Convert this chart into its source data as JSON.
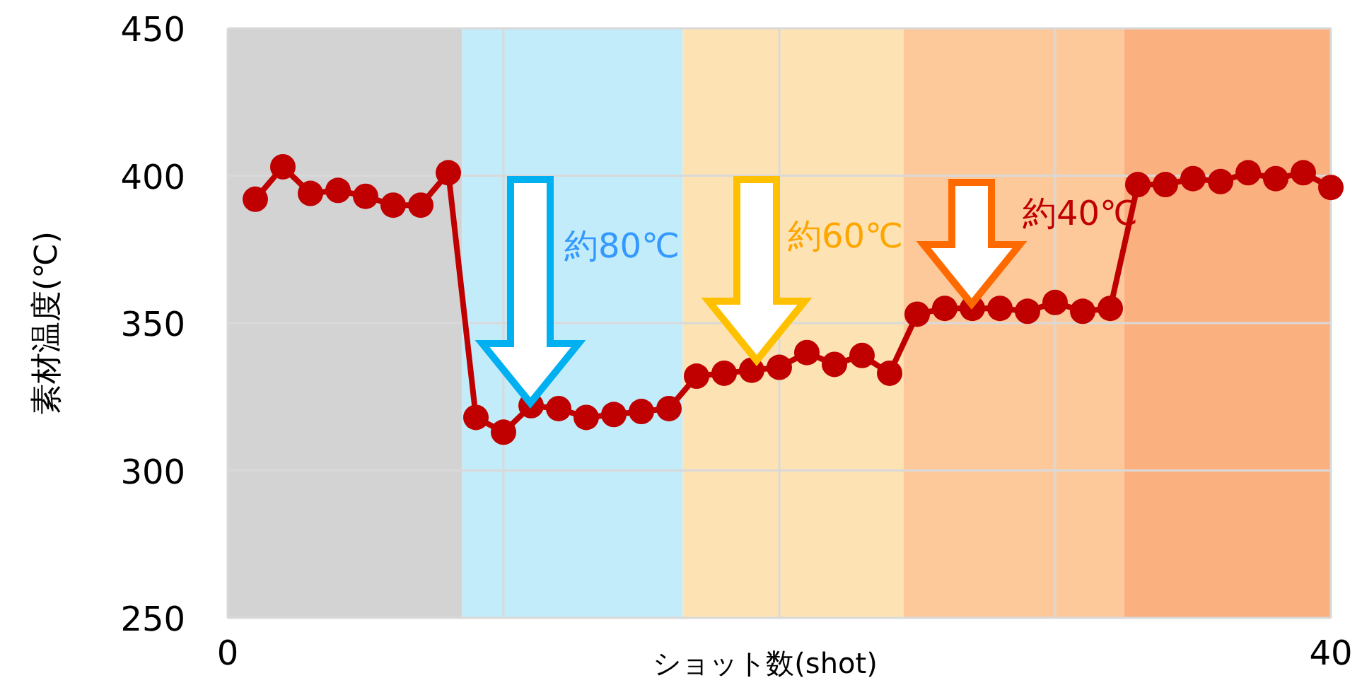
{
  "chart_data": {
    "type": "line",
    "xlabel": "ショット数(shot)",
    "ylabel": "素材温度(℃)",
    "x": [
      1,
      2,
      3,
      4,
      5,
      6,
      7,
      8,
      9,
      10,
      11,
      12,
      13,
      14,
      15,
      16,
      17,
      18,
      19,
      20,
      21,
      22,
      23,
      24,
      25,
      26,
      27,
      28,
      29,
      30,
      31,
      32,
      33,
      34,
      35,
      36,
      37,
      38,
      39,
      40
    ],
    "series": [
      {
        "color": "#c00000",
        "values": [
          392,
          403,
          394,
          395,
          393,
          390,
          390,
          401,
          318,
          313,
          322,
          321,
          318,
          319,
          320,
          321,
          332,
          333,
          334,
          335,
          340,
          336,
          339,
          333,
          353,
          355,
          355,
          355,
          354,
          357,
          354,
          355,
          397,
          397,
          399,
          398,
          401,
          399,
          401,
          396
        ]
      }
    ],
    "xlim": [
      0,
      40
    ],
    "xticks": [
      0,
      {
        "value": 10,
        "label": null
      },
      {
        "value": 20,
        "label": null
      },
      {
        "value": 30,
        "label": null
      },
      40
    ],
    "ylim": [
      250,
      450
    ],
    "yticks": [
      250,
      300,
      350,
      400,
      450
    ],
    "grid": true,
    "marker": "circle",
    "line_style": "solid",
    "bands": [
      {
        "axis": "x",
        "from": 0,
        "to": 8.5,
        "label": null,
        "color": "#d3d3d3"
      },
      {
        "axis": "x",
        "from": 8.5,
        "to": 16.5,
        "label": null,
        "color": "#c3ecfb"
      },
      {
        "axis": "x",
        "from": 16.5,
        "to": 24.5,
        "label": null,
        "color": "#fde3b3"
      },
      {
        "axis": "x",
        "from": 24.5,
        "to": 32.5,
        "label": null,
        "color": "#fdc99a"
      },
      {
        "axis": "x",
        "from": 32.5,
        "to": 40,
        "label": null,
        "color": "#fbb080"
      }
    ],
    "annotations": [
      "約80℃",
      "約60℃",
      "約40℃"
    ]
  }
}
